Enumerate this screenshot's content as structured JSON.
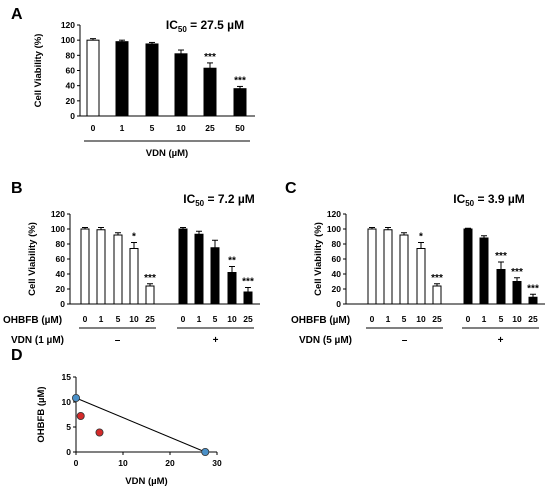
{
  "chart_data": [
    {
      "panel": "A",
      "type": "bar",
      "title": "IC50 = 27.5 µM",
      "ylabel": "Cell Viability (%)",
      "xlabel": "VDN (µM)",
      "ylim": [
        0,
        120
      ],
      "yticks": [
        0,
        20,
        40,
        60,
        80,
        100,
        120
      ],
      "categories": [
        "0",
        "1",
        "5",
        "10",
        "25",
        "50"
      ],
      "values": [
        100,
        98,
        95,
        82,
        63,
        36
      ],
      "errors": [
        2,
        2,
        2,
        5,
        7,
        3
      ],
      "fill": [
        "open",
        "filled",
        "filled",
        "filled",
        "filled",
        "filled"
      ],
      "annotations": [
        "",
        "",
        "",
        "",
        "***",
        "***"
      ]
    },
    {
      "panel": "B",
      "type": "bar",
      "title": "IC50 = 7.2 µM",
      "ylabel": "Cell Viability (%)",
      "ylim": [
        0,
        120
      ],
      "yticks": [
        0,
        20,
        40,
        60,
        80,
        100,
        120
      ],
      "row1_label": "OHBFB (µM)",
      "row2_label": "VDN (1 µM)",
      "groups": [
        {
          "condition": "–",
          "fill": "open",
          "categories": [
            "0",
            "1",
            "5",
            "10",
            "25"
          ],
          "values": [
            100,
            99,
            92,
            74,
            24
          ],
          "errors": [
            2,
            3,
            3,
            8,
            3
          ],
          "annotations": [
            "",
            "",
            "",
            "*",
            "***"
          ]
        },
        {
          "condition": "+",
          "fill": "filled",
          "categories": [
            "0",
            "1",
            "5",
            "10",
            "25"
          ],
          "values": [
            100,
            93,
            75,
            42,
            16
          ],
          "errors": [
            2,
            4,
            10,
            8,
            6
          ],
          "annotations": [
            "",
            "",
            "",
            "**",
            "***"
          ]
        }
      ]
    },
    {
      "panel": "C",
      "type": "bar",
      "title": "IC50 = 3.9 µM",
      "ylabel": "Cell Viability (%)",
      "ylim": [
        0,
        120
      ],
      "yticks": [
        0,
        20,
        40,
        60,
        80,
        100,
        120
      ],
      "row1_label": "OHBFB (µM)",
      "row2_label": "VDN (5 µM)",
      "groups": [
        {
          "condition": "–",
          "fill": "open",
          "categories": [
            "0",
            "1",
            "5",
            "10",
            "25"
          ],
          "values": [
            100,
            99,
            92,
            74,
            24
          ],
          "errors": [
            2,
            3,
            3,
            8,
            3
          ],
          "annotations": [
            "",
            "",
            "",
            "*",
            "***"
          ]
        },
        {
          "condition": "+",
          "fill": "filled",
          "categories": [
            "0",
            "1",
            "5",
            "10",
            "25"
          ],
          "values": [
            100,
            88,
            46,
            30,
            9
          ],
          "errors": [
            1,
            3,
            10,
            5,
            4
          ],
          "annotations": [
            "",
            "",
            "***",
            "***",
            "***"
          ]
        }
      ]
    },
    {
      "panel": "D",
      "type": "scatter",
      "xlabel": "VDN (µM)",
      "ylabel": "OHBFB (µM)",
      "xlim": [
        0,
        30
      ],
      "ylim": [
        0,
        15
      ],
      "xticks": [
        0,
        10,
        20,
        30
      ],
      "yticks": [
        0,
        5,
        10,
        15
      ],
      "line": {
        "x": [
          0,
          27.5
        ],
        "y": [
          10.8,
          0
        ]
      },
      "series": [
        {
          "color": "#4a90c8",
          "points": [
            {
              "x": 0,
              "y": 10.8
            },
            {
              "x": 27.5,
              "y": 0
            }
          ]
        },
        {
          "color": "#d42a2a",
          "points": [
            {
              "x": 1,
              "y": 7.2
            },
            {
              "x": 5,
              "y": 3.9
            }
          ]
        }
      ]
    }
  ]
}
